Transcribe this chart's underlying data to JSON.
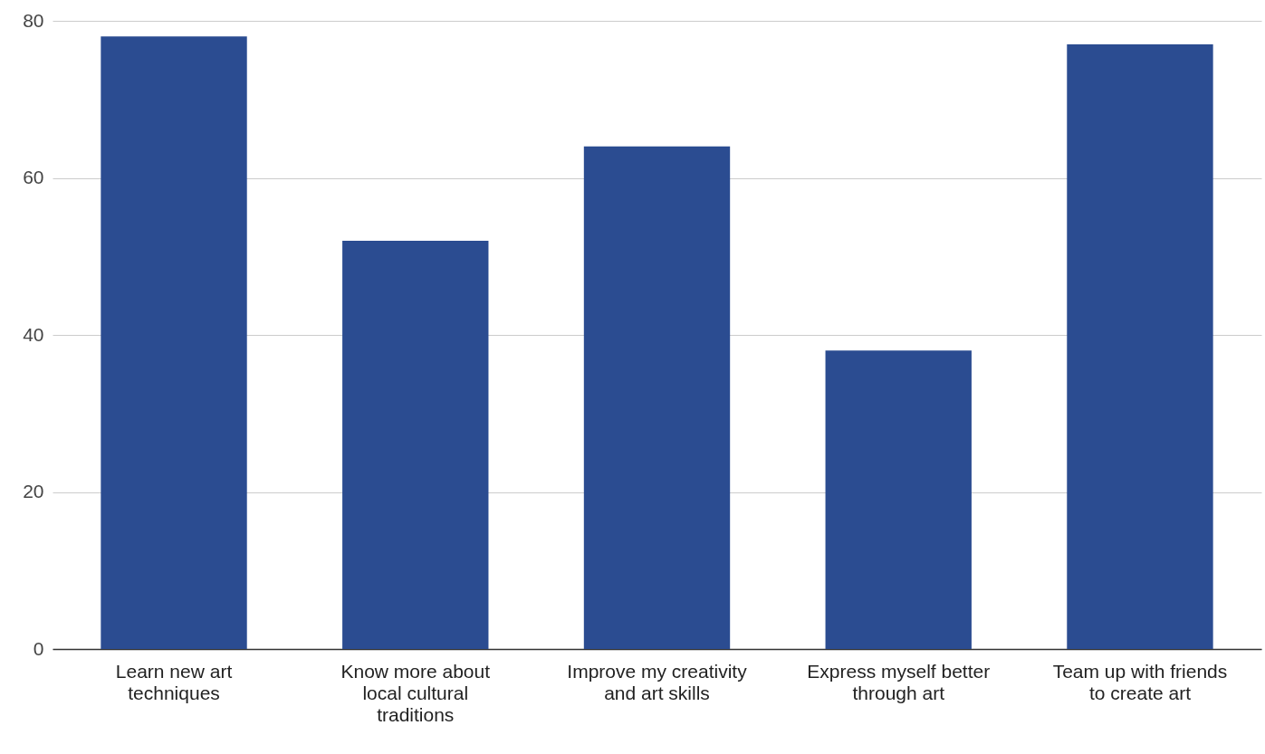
{
  "chart_data": {
    "type": "bar",
    "categories": [
      "Learn new art techniques",
      "Know more about local cultural traditions",
      "Improve my creativity and art skills",
      "Express myself better through art",
      "Team up with friends to create art"
    ],
    "values": [
      78,
      52,
      64,
      38,
      77
    ],
    "color": "#2b4c91",
    "ylim": [
      0,
      80
    ],
    "yticks": [
      0,
      20,
      40,
      60,
      80
    ],
    "grid": "y"
  }
}
